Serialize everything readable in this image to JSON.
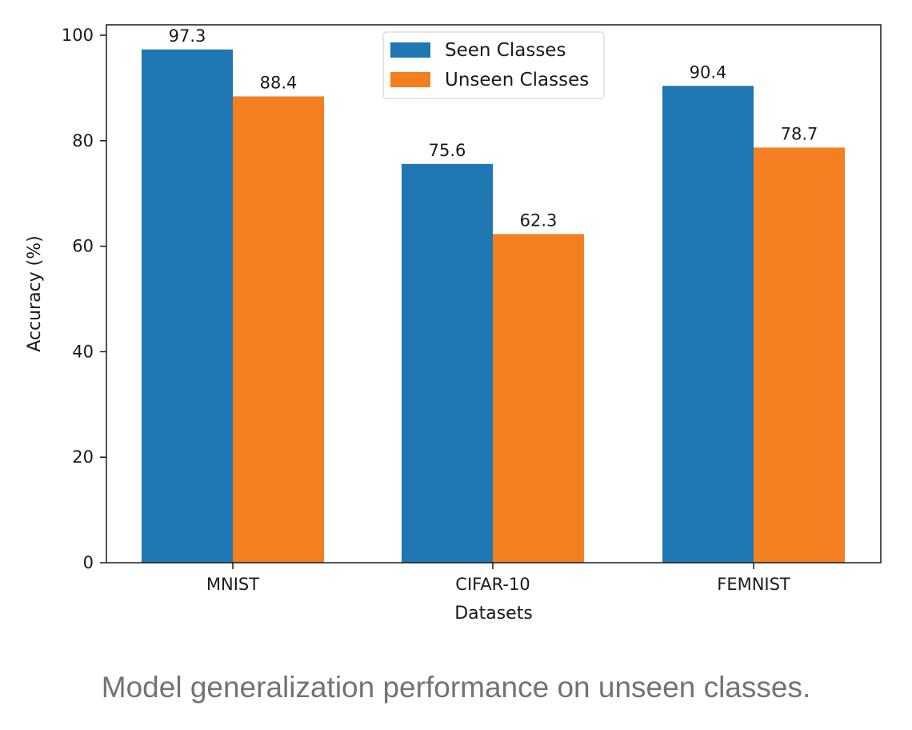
{
  "caption": "Model generalization performance on unseen classes.",
  "colors": {
    "seen": "#1f77b4",
    "unseen": "#f47f20"
  },
  "chart_data": {
    "type": "bar",
    "categories": [
      "MNIST",
      "CIFAR-10",
      "FEMNIST"
    ],
    "series": [
      {
        "name": "Seen Classes",
        "values": [
          97.3,
          75.6,
          90.4
        ]
      },
      {
        "name": "Unseen Classes",
        "values": [
          88.4,
          62.3,
          78.7
        ]
      }
    ],
    "data_labels": [
      [
        "97.3",
        "75.6",
        "90.4"
      ],
      [
        "88.4",
        "62.3",
        "78.7"
      ]
    ],
    "title": "",
    "xlabel": "Datasets",
    "ylabel": "Accuracy (%)",
    "ylim": [
      0,
      102
    ],
    "yticks": [
      0,
      20,
      40,
      60,
      80,
      100
    ],
    "grid": false,
    "legend": "top-center"
  }
}
